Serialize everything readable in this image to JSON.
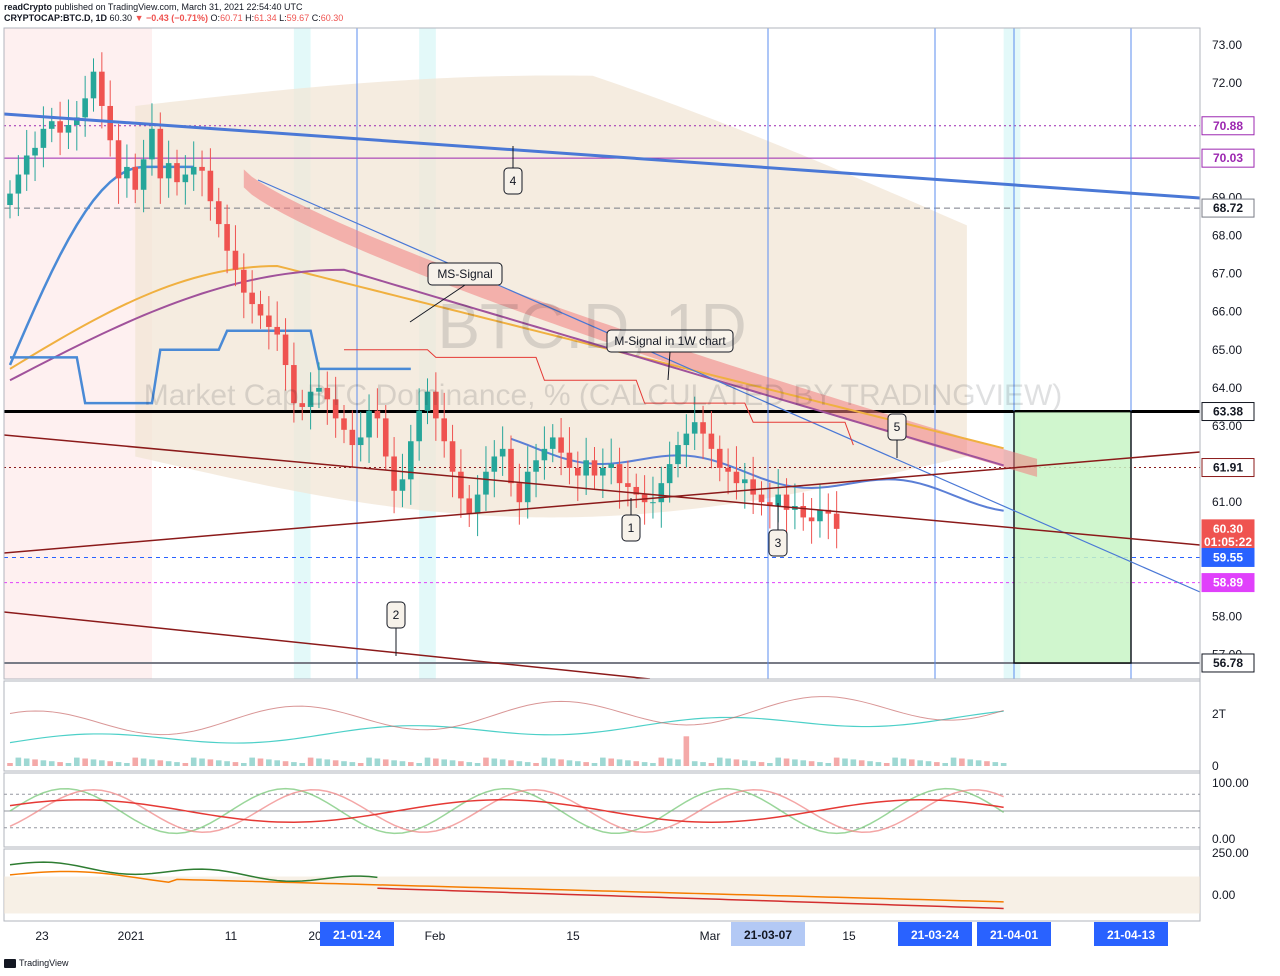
{
  "header": {
    "author": "readCrypto",
    "published_text": "published on TradingView.com, March 31, 2021 22:54:40 UTC",
    "symbol": "CRYPTOCAP:BTC.D, 1D",
    "last": "60.30",
    "change": "▼ −0.43 (−0.71%)",
    "ohlc": [
      {
        "label": "O:",
        "value": "60.71"
      },
      {
        "label": "H:",
        "value": "61.34"
      },
      {
        "label": "L:",
        "value": "59.67"
      },
      {
        "label": "C:",
        "value": "60.30"
      }
    ]
  },
  "footer": {
    "brand": "TradingView"
  },
  "watermark": {
    "symbol": "BTC.D, 1D",
    "description": "Market Cap BTC Dominance, % (CALCULATED BY TRADINGVIEW)"
  },
  "annotations": [
    {
      "text": "MS-Signal"
    },
    {
      "text": "M-Signal in 1W chart"
    },
    {
      "text": "1"
    },
    {
      "text": "2"
    },
    {
      "text": "3"
    },
    {
      "text": "4"
    },
    {
      "text": "5"
    }
  ],
  "colors": {
    "up": "#26a69a",
    "down": "#ef5350",
    "trend_blue": "#4a78d6",
    "trend_dark": "#8b1a1a",
    "cloud": "#f2e6d5",
    "purple": "#9c27b0",
    "box_green": "#c8f5c6",
    "blue_axis": "#2962ff",
    "magenta": "#e040fb"
  },
  "chart_data": [
    {
      "type": "line",
      "series_kind": "candlestick",
      "yticks": [
        73.0,
        72.0,
        71.0,
        70.0,
        69.0,
        68.0,
        67.0,
        66.0,
        65.0,
        64.0,
        63.0,
        62.0,
        61.0,
        60.0,
        59.0,
        58.0,
        57.0
      ],
      "ylim": [
        56.5,
        73.3
      ],
      "x_ticks": [
        {
          "label": "23",
          "index": 1
        },
        {
          "label": "2021",
          "index": 10
        },
        {
          "label": "11",
          "index": 20
        },
        {
          "label": "20",
          "index": 29
        },
        {
          "label": "Feb",
          "index": 41
        },
        {
          "label": "15",
          "index": 55
        },
        {
          "label": "Mar",
          "index": 69
        },
        {
          "label": "15",
          "index": 83
        }
      ],
      "x_highlight": [
        {
          "label": "21-01-24",
          "index": 33
        },
        {
          "label": "21-03-07",
          "index": 75
        },
        {
          "label": "21-03-24",
          "index": 92
        },
        {
          "label": "21-04-01",
          "index": 100
        },
        {
          "label": "21-04-13",
          "index": 112
        }
      ],
      "price_labels": [
        {
          "value": "70.88",
          "price": 70.88,
          "bg": "#ffffff",
          "fg": "#9c27b0",
          "border": "#9c27b0"
        },
        {
          "value": "70.03",
          "price": 70.03,
          "bg": "#ffffff",
          "fg": "#9c27b0",
          "border": "#9c27b0"
        },
        {
          "value": "68.72",
          "price": 68.72,
          "bg": "#ffffff",
          "fg": "#131722",
          "border": "#787b86"
        },
        {
          "value": "63.38",
          "price": 63.38,
          "bg": "#ffffff",
          "fg": "#131722",
          "border": "#131722"
        },
        {
          "value": "61.91",
          "price": 61.91,
          "bg": "#ffffff",
          "fg": "#131722",
          "border": "#8b1a1a"
        },
        {
          "value": "60.30",
          "price": 60.3,
          "bg": "#ef5350",
          "fg": "#ffffff",
          "border": "#ef5350"
        },
        {
          "value": "01:05:22",
          "price": 59.95,
          "bg": "#ef5350",
          "fg": "#ffffff",
          "border": "#ef5350"
        },
        {
          "value": "59.55",
          "price": 59.55,
          "bg": "#2962ff",
          "fg": "#ffffff",
          "border": "#2962ff"
        },
        {
          "value": "58.89",
          "price": 58.89,
          "bg": "#e040fb",
          "fg": "#ffffff",
          "border": "#e040fb"
        },
        {
          "value": "56.78",
          "price": 56.78,
          "bg": "#ffffff",
          "fg": "#131722",
          "border": "#131722"
        }
      ],
      "closes": [
        69.1,
        69.6,
        70.1,
        70.3,
        70.8,
        71.0,
        70.7,
        70.9,
        71.1,
        71.6,
        72.3,
        71.4,
        70.5,
        69.5,
        69.8,
        69.2,
        70.0,
        70.8,
        69.5,
        69.9,
        69.4,
        69.6,
        69.8,
        69.7,
        68.9,
        68.3,
        67.6,
        67.1,
        66.5,
        66.2,
        65.9,
        65.6,
        65.4,
        64.6,
        63.6,
        63.5,
        63.9,
        64.0,
        63.7,
        63.2,
        62.9,
        62.5,
        62.7,
        63.4,
        63.2,
        62.2,
        61.3,
        61.6,
        62.6,
        63.4,
        63.9,
        63.2,
        62.6,
        61.8,
        61.1,
        60.7,
        61.2,
        61.8,
        62.2,
        62.4,
        61.5,
        61.0,
        61.8,
        62.1,
        62.4,
        62.7,
        62.3,
        61.9,
        61.7,
        62.1,
        61.7,
        61.9,
        62.0,
        61.5,
        61.4,
        61.2,
        61.0,
        61.0,
        61.5,
        62.0,
        62.5,
        62.8,
        63.1,
        62.8,
        62.4,
        61.9,
        61.8,
        61.5,
        61.6,
        61.2,
        61.0,
        60.9,
        61.2,
        60.8,
        60.9,
        60.6,
        60.5,
        60.8,
        60.7,
        60.3
      ],
      "channel": {
        "upper": "4",
        "lower": "2"
      }
    },
    {
      "type": "area",
      "ylabel": "",
      "yticks": [
        {
          "label": "2T",
          "value": 2
        },
        {
          "label": "0",
          "value": 0
        }
      ]
    },
    {
      "type": "line",
      "yticks": [
        {
          "label": "100.00",
          "value": 100
        },
        {
          "label": "0.00",
          "value": 0
        }
      ]
    },
    {
      "type": "line",
      "yticks": [
        {
          "label": "250.00",
          "value": 250
        },
        {
          "label": "0.00",
          "value": 0
        }
      ]
    }
  ]
}
